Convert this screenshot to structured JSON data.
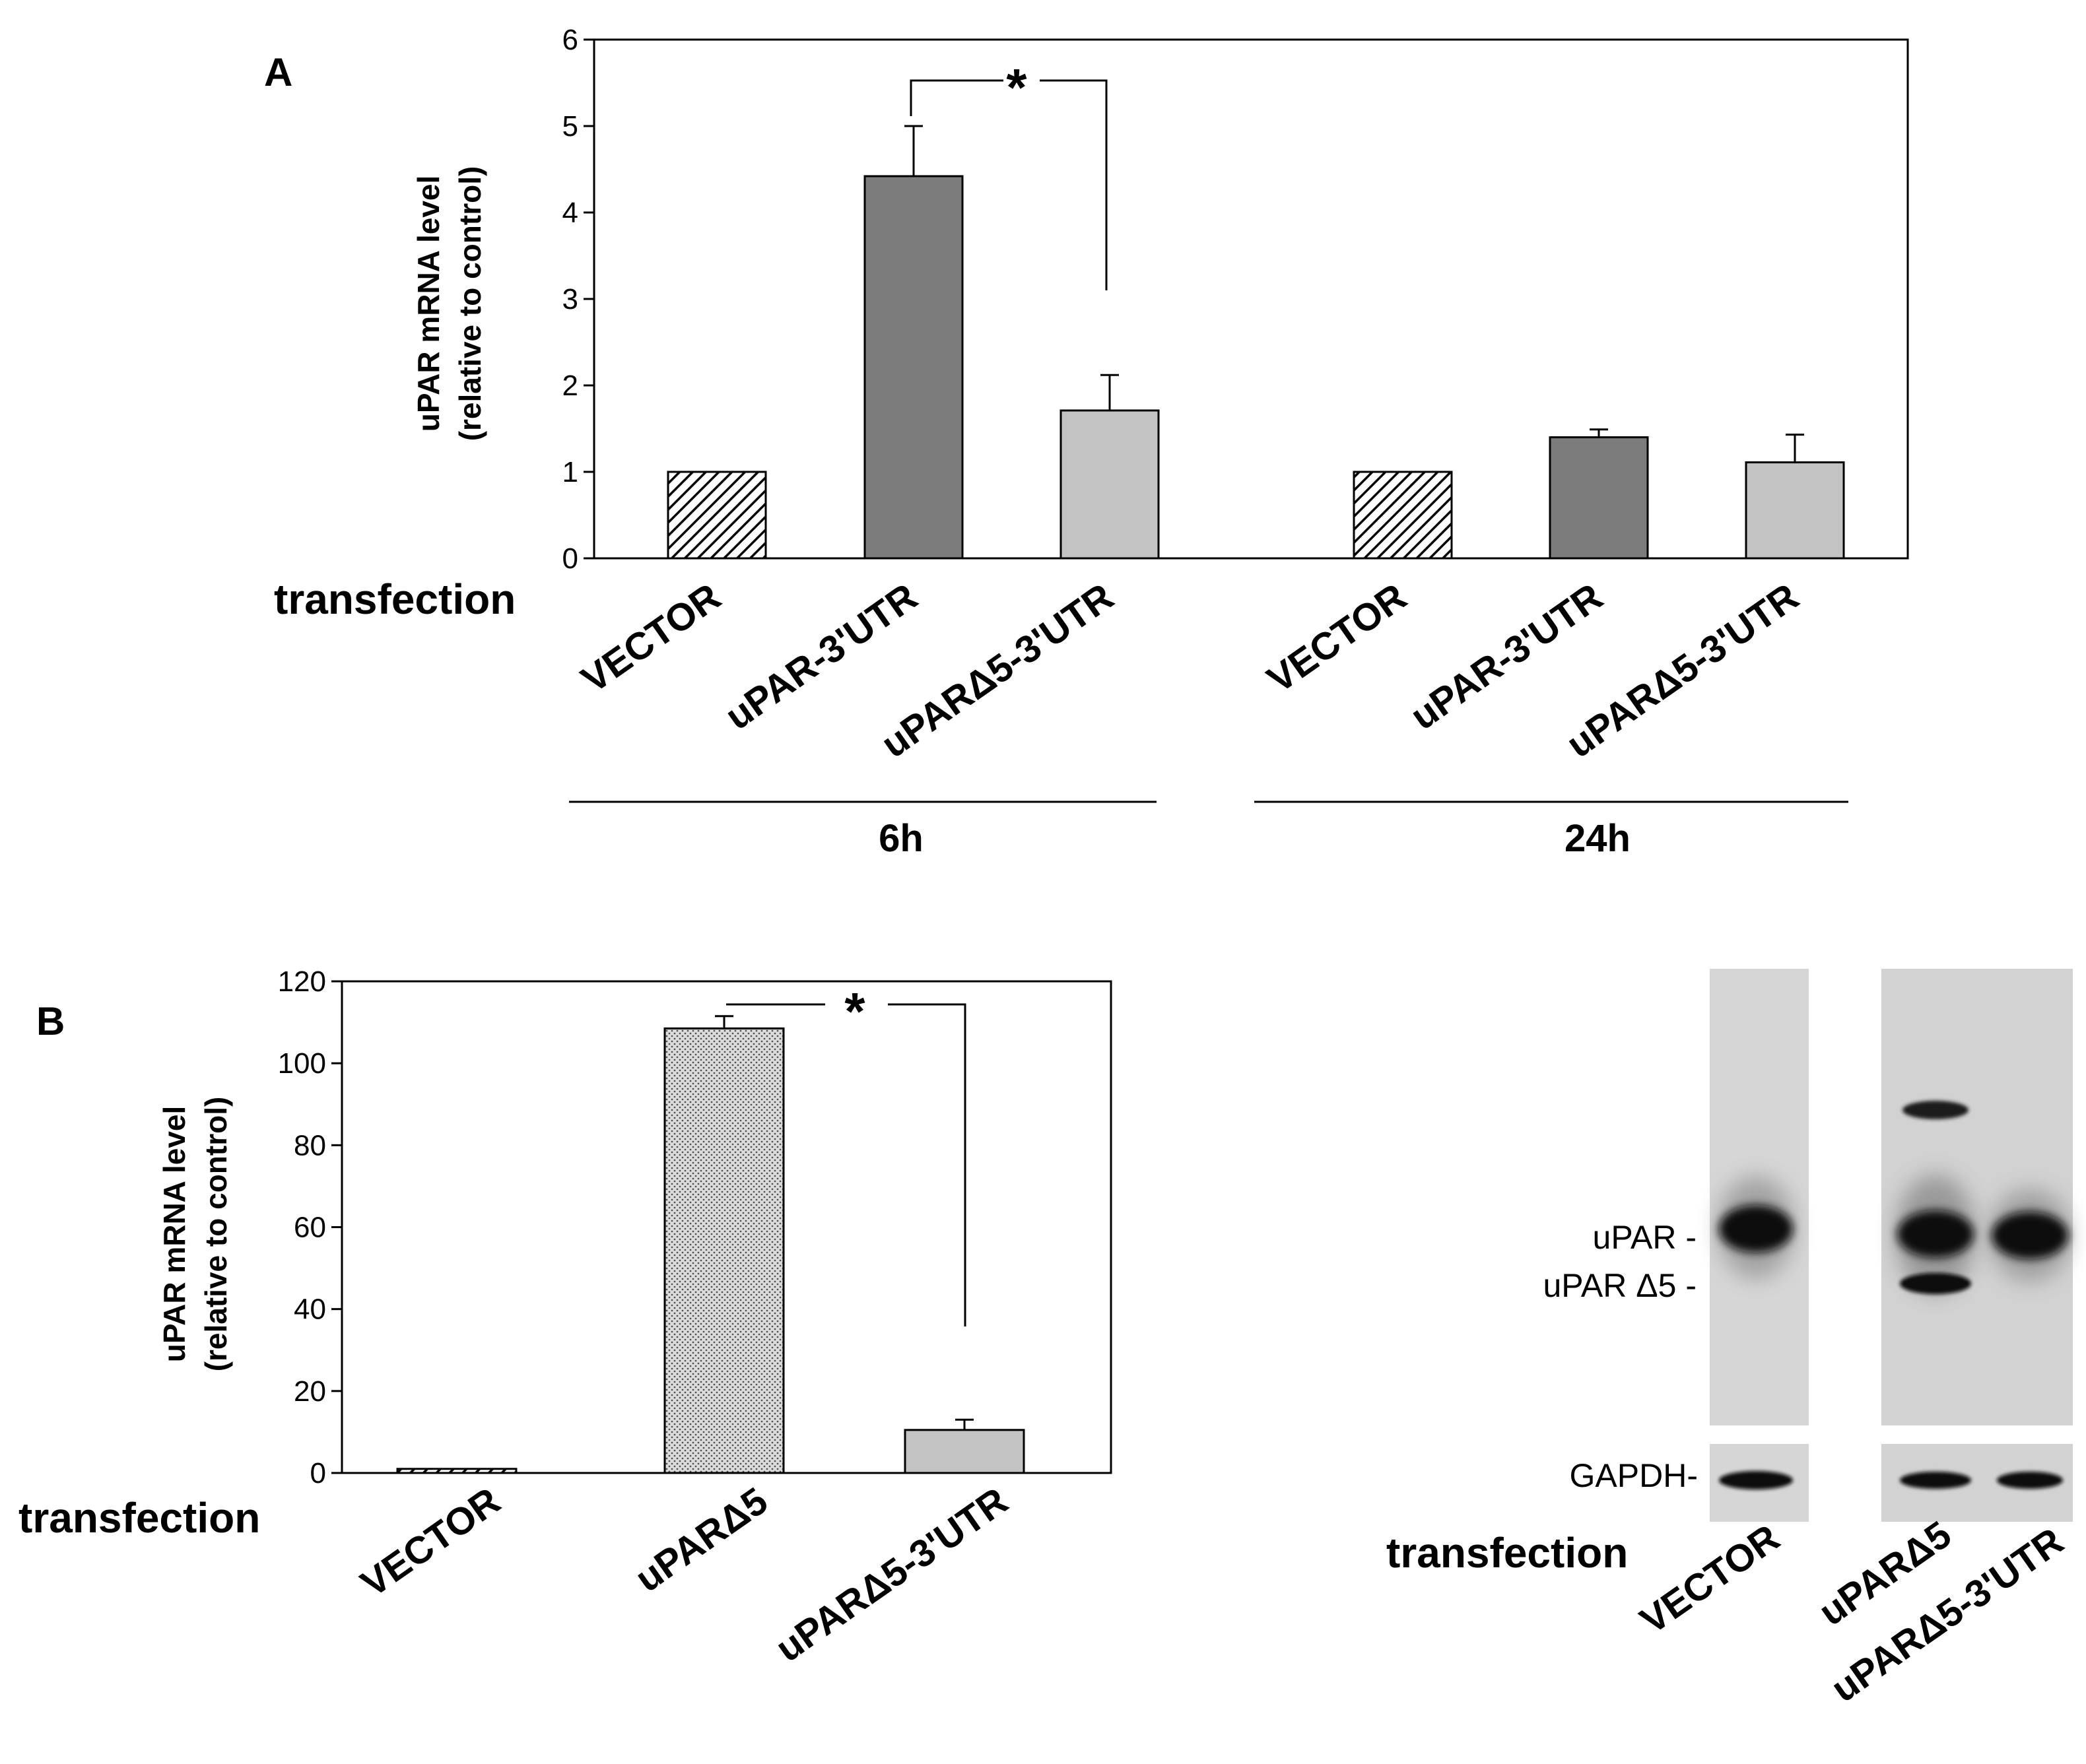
{
  "panel_a": {
    "label": "A",
    "transfection_label": "transfection",
    "significance": "*",
    "groups": [
      "6h",
      "24h"
    ]
  },
  "panel_b": {
    "label": "B",
    "transfection_label": "transfection",
    "significance": "*"
  },
  "chart_data": [
    {
      "type": "bar",
      "title": "",
      "ylabel": [
        "uPAR mRNA level",
        "(relative to control)"
      ],
      "ylim": [
        0,
        6
      ],
      "yticks": [
        0,
        1,
        2,
        3,
        4,
        5,
        6
      ],
      "groups": [
        "6h",
        "24h"
      ],
      "categories": [
        "VECTOR",
        "uPAR-3'UTR",
        "uPARΔ5-3'UTR",
        "VECTOR",
        "uPAR-3'UTR",
        "uPARΔ5-3'UTR"
      ],
      "values": [
        1.0,
        4.42,
        1.71,
        1.0,
        1.4,
        1.11
      ],
      "errors": [
        0,
        0.58,
        0.41,
        0,
        0.09,
        0.32
      ],
      "styles": [
        "hatch",
        "dark",
        "light",
        "hatch",
        "dark",
        "light"
      ]
    },
    {
      "type": "bar",
      "title": "",
      "ylabel": [
        "uPAR mRNA level",
        "(relative to control)"
      ],
      "ylim": [
        0,
        120
      ],
      "yticks": [
        0,
        20,
        40,
        60,
        80,
        100,
        120
      ],
      "categories": [
        "VECTOR",
        "uPARΔ5",
        "uPARΔ5-3'UTR"
      ],
      "values": [
        1.0,
        108.5,
        10.5
      ],
      "errors": [
        0,
        3.0,
        2.5
      ],
      "styles": [
        "hatch",
        "dotted",
        "light"
      ]
    }
  ],
  "blot": {
    "band_labels": [
      "uPAR -",
      "uPAR Δ5 -"
    ],
    "loading_label": "GAPDH-",
    "transfection_label": "transfection",
    "lanes": [
      "VECTOR",
      "uPARΔ5",
      "uPARΔ5-3'UTR"
    ],
    "colors": {
      "membrane": "#d6d6d6",
      "band": "#111111"
    }
  },
  "colors": {
    "dark_bar": "#7c7c7c",
    "light_bar": "#c3c3c3",
    "dotted_bar": "#d9d9d9"
  }
}
